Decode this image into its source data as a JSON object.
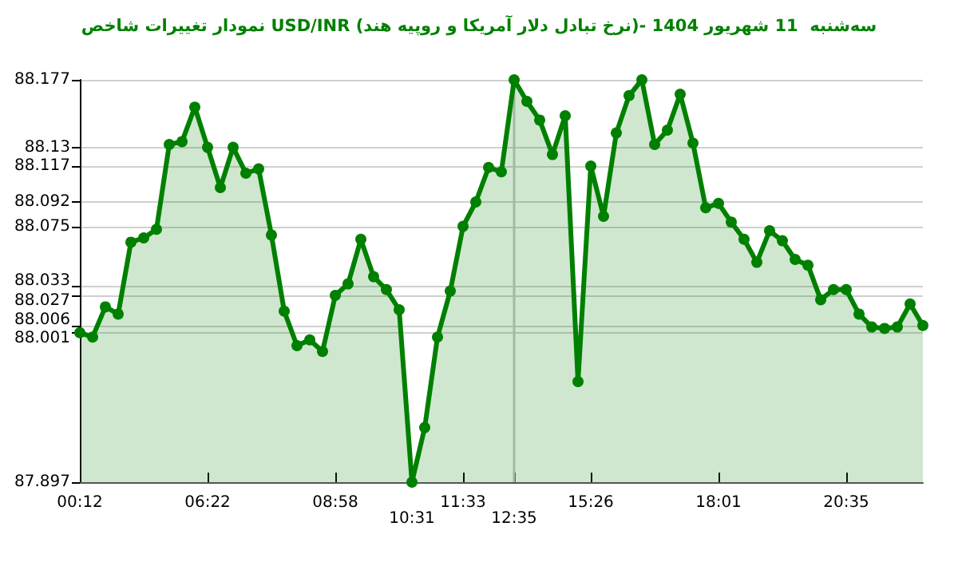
{
  "chart_data": {
    "type": "area",
    "title": "نمودار تغییرات شاخص USD/INR (نرخ تبادل دلار آمریکا و روپیه هند)- سه‌شنبه  11 شهریور 1404",
    "categories": [
      "00:12",
      null,
      null,
      null,
      null,
      null,
      null,
      null,
      null,
      null,
      "06:22",
      null,
      null,
      null,
      null,
      null,
      null,
      null,
      null,
      null,
      "08:58",
      null,
      null,
      null,
      null,
      null,
      "10:31",
      null,
      null,
      null,
      "11:33",
      null,
      null,
      null,
      "12:35",
      null,
      null,
      null,
      null,
      null,
      "15:26",
      null,
      null,
      null,
      null,
      null,
      null,
      null,
      null,
      null,
      "18:01",
      null,
      null,
      null,
      null,
      null,
      null,
      null,
      null,
      null,
      "20:35",
      null,
      null,
      null,
      null,
      null,
      null
    ],
    "series": [
      {
        "color": "#008000",
        "values": [
          88.001,
          87.998,
          88.019,
          88.014,
          88.064,
          88.067,
          88.073,
          88.132,
          88.134,
          88.158,
          88.13,
          88.102,
          88.13,
          88.112,
          88.115,
          88.069,
          88.016,
          87.992,
          87.996,
          87.988,
          88.027,
          88.035,
          88.066,
          88.04,
          88.031,
          88.017,
          87.897,
          87.935,
          87.998,
          88.03,
          88.075,
          88.092,
          88.116,
          88.113,
          88.177,
          88.162,
          88.149,
          88.125,
          88.152,
          87.967,
          88.117,
          88.082,
          88.14,
          88.166,
          88.177,
          88.132,
          88.142,
          88.167,
          88.133,
          88.088,
          88.091,
          88.078,
          88.066,
          88.05,
          88.072,
          88.065,
          88.052,
          88.048,
          88.024,
          88.031,
          88.031,
          88.014,
          88.005,
          88.004,
          88.005,
          88.021,
          88.006
        ]
      }
    ],
    "ylim": [
      87.897,
      88.177
    ],
    "yticks": [
      87.897,
      88.001,
      88.006,
      88.027,
      88.033,
      88.075,
      88.092,
      88.117,
      88.13,
      88.177
    ],
    "ref_lines": [
      {
        "axis": "x",
        "value": "12:35",
        "color": "#c8c8c8"
      }
    ],
    "grid": "y",
    "marker": "circle",
    "line_style": "solid"
  }
}
